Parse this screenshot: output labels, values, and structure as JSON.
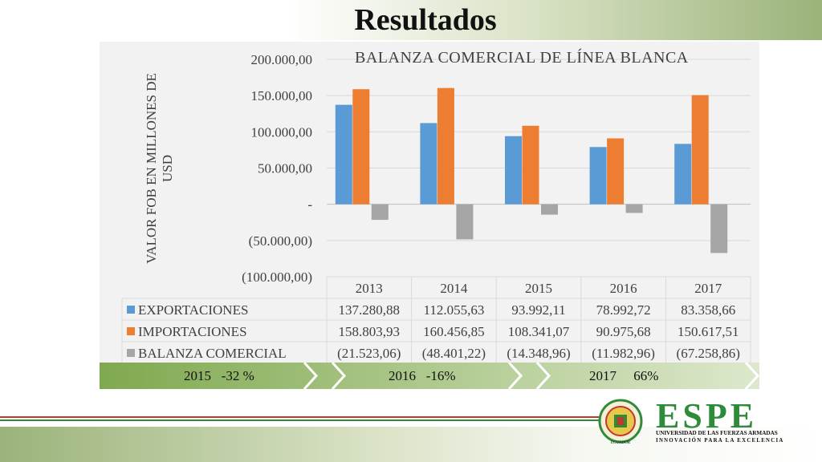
{
  "page": {
    "title": "Resultados"
  },
  "chart_data": {
    "type": "bar",
    "title": "BALANZA  COMERCIAL  DE LÍNEA BLANCA",
    "ylabel": "VALOR FOB EN MILLONES DE USD",
    "xlabel": "",
    "ylim": [
      -100000,
      200000
    ],
    "ytick_values": [
      200000,
      150000,
      100000,
      50000,
      0,
      -50000,
      -100000
    ],
    "yticks": [
      "200.000,00",
      "150.000,00",
      "100.000,00",
      "50.000,00",
      "-",
      "(50.000,00)",
      "(100.000,00)"
    ],
    "categories": [
      "2013",
      "2014",
      "2015",
      "2016",
      "2017"
    ],
    "grid": true,
    "legend": "data-table-left",
    "series": [
      {
        "name": "EXPORTACIONES",
        "color": "#5b9bd5",
        "values": [
          137280.88,
          112055.63,
          93992.11,
          78992.72,
          83358.66
        ],
        "labels": [
          "137.280,88",
          "112.055,63",
          "93.992,11",
          "78.992,72",
          "83.358,66"
        ]
      },
      {
        "name": "IMPORTACIONES",
        "color": "#ed7d31",
        "values": [
          158803.93,
          160456.85,
          108341.07,
          90975.68,
          150617.51
        ],
        "labels": [
          "158.803,93",
          "160.456,85",
          "108.341,07",
          "90.975,68",
          "150.617,51"
        ]
      },
      {
        "name": "BALANZA COMERCIAL",
        "color": "#a5a5a5",
        "values": [
          -21523.06,
          -48401.22,
          -14348.96,
          -11982.96,
          -67258.86
        ],
        "labels": [
          "(21.523,06)",
          "(48.401,22)",
          "(14.348,96)",
          "(11.982,96)",
          "(67.258,86)"
        ]
      }
    ]
  },
  "timeline": {
    "items": [
      {
        "year": "2015",
        "change": "-32 %"
      },
      {
        "year": "2016",
        "change": "-16%"
      },
      {
        "year": "2017",
        "change": "66%"
      }
    ]
  },
  "footer": {
    "brand": "ESPE",
    "university": "UNIVERSIDAD DE LAS FUERZAS ARMADAS",
    "motto": "INNOVACIÓN PARA LA EXCELENCIA",
    "seal_text": "ECUADOR",
    "accent_green": "#2e8b3a",
    "accent_red": "#c0392b"
  }
}
